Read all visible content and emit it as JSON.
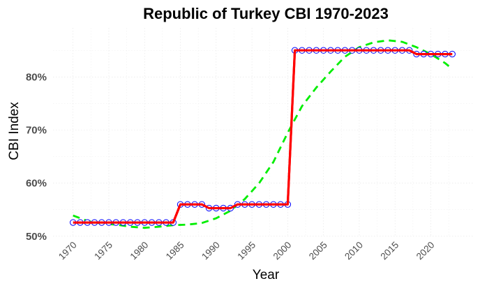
{
  "chart_data": {
    "type": "line",
    "title": "Republic of Turkey CBI 1970-2023",
    "xlabel": "Year",
    "ylabel": "CBI Index",
    "x_ticks": [
      "1970",
      "1975",
      "1980",
      "1985",
      "1990",
      "1995",
      "2000",
      "2005",
      "2010",
      "2015",
      "2020"
    ],
    "y_ticks": [
      "50%",
      "60%",
      "70%",
      "80%"
    ],
    "xlim": [
      1967.2,
      2025.9
    ],
    "ylim": [
      49.85,
      89.23
    ],
    "grid": true,
    "legend": "none",
    "x": [
      1970,
      1971,
      1972,
      1973,
      1974,
      1975,
      1976,
      1977,
      1978,
      1979,
      1980,
      1981,
      1982,
      1983,
      1984,
      1985,
      1986,
      1987,
      1988,
      1989,
      1990,
      1991,
      1992,
      1993,
      1994,
      1995,
      1996,
      1997,
      1998,
      1999,
      2000,
      2001,
      2002,
      2003,
      2004,
      2005,
      2006,
      2007,
      2008,
      2009,
      2010,
      2011,
      2012,
      2013,
      2014,
      2015,
      2016,
      2017,
      2018,
      2019,
      2020,
      2021,
      2022,
      2023
    ],
    "series": [
      {
        "style": "solid line with circle markers",
        "color": "#ff0000",
        "marker_edge_color": "#0000ff",
        "values": [
          52.6,
          52.6,
          52.6,
          52.6,
          52.6,
          52.6,
          52.6,
          52.6,
          52.6,
          52.6,
          52.6,
          52.6,
          52.6,
          52.6,
          52.6,
          56.0,
          56.0,
          56.0,
          56.0,
          55.3,
          55.3,
          55.3,
          55.3,
          56.0,
          56.0,
          56.0,
          56.0,
          56.0,
          56.0,
          56.0,
          56.0,
          85.0,
          85.0,
          85.0,
          85.0,
          85.0,
          85.0,
          85.0,
          85.0,
          85.0,
          85.0,
          85.0,
          85.0,
          85.0,
          85.0,
          85.0,
          85.0,
          85.0,
          84.3,
          84.3,
          84.3,
          84.3,
          84.3,
          84.3
        ]
      },
      {
        "style": "dashed smoothed trend",
        "color": "#00ee00",
        "x": [
          1970,
          1972,
          1974,
          1976,
          1978,
          1980,
          1982,
          1984,
          1986,
          1988,
          1990,
          1992,
          1994,
          1996,
          1998,
          2000,
          2002,
          2004,
          2006,
          2008,
          2010,
          2012,
          2014,
          2016,
          2018,
          2020,
          2022,
          2023
        ],
        "values": [
          53.9,
          52.9,
          52.4,
          52.2,
          51.8,
          51.6,
          51.8,
          52.1,
          52.2,
          52.5,
          53.4,
          54.8,
          57.0,
          60.0,
          64.0,
          69.5,
          74.5,
          78.0,
          81.0,
          83.8,
          85.6,
          86.5,
          86.9,
          86.6,
          85.6,
          84.3,
          82.6,
          81.5
        ]
      }
    ]
  }
}
